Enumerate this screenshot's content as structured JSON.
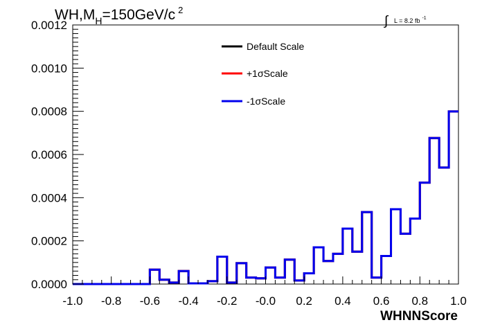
{
  "chart_data": {
    "type": "line",
    "title_parts": {
      "pre": "WH,M",
      "sub": "H",
      "mid": "=150GeV/c",
      "sup": "2"
    },
    "lumi_parts": {
      "integral": "∫",
      "text": "L = 8.2 fb",
      "sup": "-1"
    },
    "xlabel": "WHNNScore",
    "ylabel": "",
    "xlim": [
      -1.0,
      1.0
    ],
    "ylim": [
      0.0,
      0.0012
    ],
    "x_ticks": [
      "-1.0",
      "-0.8",
      "-0.6",
      "-0.4",
      "-0.2",
      "-0.0",
      "0.2",
      "0.4",
      "0.6",
      "0.8",
      "1.0"
    ],
    "y_ticks": [
      "0.0000",
      "0.0002",
      "0.0004",
      "0.0006",
      "0.0008",
      "0.0010",
      "0.0012"
    ],
    "grid": false,
    "legend_position": "top-center",
    "bin_edges": [
      -1.0,
      -0.95,
      -0.9,
      -0.85,
      -0.8,
      -0.75,
      -0.7,
      -0.65,
      -0.6,
      -0.55,
      -0.5,
      -0.45,
      -0.4,
      -0.35,
      -0.3,
      -0.25,
      -0.2,
      -0.15,
      -0.1,
      -0.05,
      0.0,
      0.05,
      0.1,
      0.15,
      0.2,
      0.25,
      0.3,
      0.35,
      0.4,
      0.45,
      0.5,
      0.55,
      0.6,
      0.65,
      0.7,
      0.75,
      0.8,
      0.85,
      0.9,
      0.95,
      1.0
    ],
    "series": [
      {
        "name": "Default Scale",
        "color": "#000000",
        "values": [
          0,
          0,
          0,
          0,
          0,
          0,
          0,
          0,
          6.66e-05,
          2e-05,
          6.7e-06,
          6e-05,
          3.3e-06,
          3.3e-06,
          1.33e-05,
          0.0001266,
          6.7e-06,
          9.66e-05,
          3e-05,
          2.66e-05,
          7.66e-05,
          3e-05,
          0.0001133,
          1.66e-05,
          4.99e-05,
          0.0001699,
          0.0001066,
          0.0001399,
          0.0002565,
          0.0001499,
          0.0003331,
          3e-05,
          0.0001299,
          0.0003464,
          0.0002332,
          0.0003031,
          0.0004697,
          0.0006762,
          0.0005396,
          0.0007994
        ]
      },
      {
        "name": "+1σScale",
        "color": "#ff0000",
        "values": [
          0,
          0,
          0,
          0,
          0,
          0,
          0,
          0,
          6.66e-05,
          2e-05,
          6.7e-06,
          6e-05,
          3.3e-06,
          3.3e-06,
          1.33e-05,
          0.0001266,
          6.7e-06,
          9.66e-05,
          3e-05,
          2.66e-05,
          7.66e-05,
          3e-05,
          0.0001133,
          1.66e-05,
          4.99e-05,
          0.0001699,
          0.0001066,
          0.0001399,
          0.0002565,
          0.0001499,
          0.0003331,
          3e-05,
          0.0001299,
          0.0003464,
          0.0002332,
          0.0003031,
          0.0004697,
          0.0006762,
          0.0005396,
          0.0007994
        ]
      },
      {
        "name": "-1σScale",
        "color": "#0000ee",
        "values": [
          0,
          0,
          0,
          0,
          0,
          0,
          0,
          0,
          6.66e-05,
          2e-05,
          6.7e-06,
          6e-05,
          3.3e-06,
          3.3e-06,
          1.33e-05,
          0.0001266,
          6.7e-06,
          9.66e-05,
          3e-05,
          2.66e-05,
          7.66e-05,
          3e-05,
          0.0001133,
          1.66e-05,
          4.99e-05,
          0.0001699,
          0.0001066,
          0.0001399,
          0.0002565,
          0.0001499,
          0.0003331,
          3e-05,
          0.0001299,
          0.0003464,
          0.0002332,
          0.0003031,
          0.0004697,
          0.0006762,
          0.0005396,
          0.0007994
        ]
      }
    ]
  }
}
